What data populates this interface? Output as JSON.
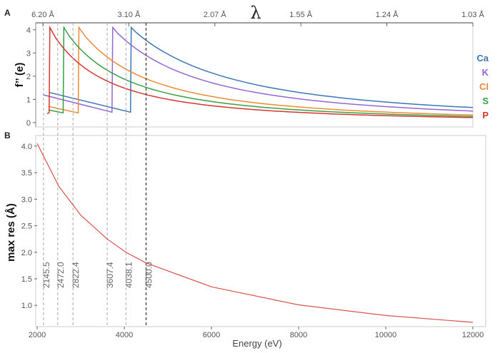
{
  "chart_data": [
    {
      "panel": "A",
      "type": "line",
      "ylabel": "f’’ (e)",
      "top_axis_symbol": "λ",
      "top_ticks": [
        "6.20 Å",
        "3.10 Å",
        "2.07 Å",
        "1.55 Å",
        "1.24 Å",
        "1.03 Å"
      ],
      "top_tick_energies": [
        2000,
        4000,
        6000,
        8000,
        10000,
        12000
      ],
      "xlim": [
        2000,
        12000
      ],
      "ylim": [
        0,
        4.3
      ],
      "yticks": [
        0,
        1,
        2,
        3,
        4
      ],
      "legend_position": "right",
      "series": [
        {
          "name": "Ca",
          "color": "#3b78b5",
          "edge": 4038.1,
          "pre_edge": [
            [
              2150,
              1.3
            ],
            [
              4038.1,
              0.45
            ]
          ],
          "post_edge_peak": 4.1,
          "post_edge_end": 0.65
        },
        {
          "name": "K",
          "color": "#9467d6",
          "edge": 3607.4,
          "pre_edge": [
            [
              2000,
              1.2
            ],
            [
              3607.4,
              0.45
            ]
          ],
          "post_edge_peak": 4.1,
          "post_edge_end": 0.5
        },
        {
          "name": "Cl",
          "color": "#f08a32",
          "edge": 2822.4,
          "pre_edge": [
            [
              2130,
              0.7
            ],
            [
              2822.4,
              0.42
            ]
          ],
          "post_edge_peak": 4.1,
          "post_edge_end": 0.33
        },
        {
          "name": "S",
          "color": "#37a045",
          "edge": 2472.0,
          "pre_edge": [
            [
              2130,
              0.55
            ],
            [
              2472.0,
              0.42
            ]
          ],
          "post_edge_peak": 4.1,
          "post_edge_end": 0.27
        },
        {
          "name": "P",
          "color": "#d6362f",
          "edge": 2145.5,
          "pre_edge": [
            [
              2100,
              0.4
            ],
            [
              2145.5,
              0.42
            ]
          ],
          "post_edge_peak": 4.1,
          "post_edge_end": 0.22
        }
      ]
    },
    {
      "panel": "B",
      "type": "line",
      "ylabel": "max res (Å)",
      "xlabel": "Energy (eV)",
      "xlim": [
        2000,
        12000
      ],
      "ylim": [
        0.6,
        4.2
      ],
      "xticks": [
        "2000",
        "4000",
        "6000",
        "8000",
        "10000",
        "12000"
      ],
      "xtick_values": [
        2000,
        4000,
        6000,
        8000,
        10000,
        12000
      ],
      "yticks": [
        "1.0",
        "1.5",
        "2.0",
        "2.5",
        "3.0",
        "3.5",
        "4.0"
      ],
      "ytick_values": [
        1.0,
        1.5,
        2.0,
        2.5,
        3.0,
        3.5,
        4.0
      ],
      "series": [
        {
          "name": "max res",
          "color": "#d9534f",
          "formula": "8100 / E",
          "points": [
            [
              2000,
              4.05
            ],
            [
              2500,
              3.24
            ],
            [
              3000,
              2.7
            ],
            [
              3607.4,
              2.25
            ],
            [
              4038.1,
              2.0
            ],
            [
              4500,
              1.8
            ],
            [
              6000,
              1.35
            ],
            [
              8000,
              1.01
            ],
            [
              10000,
              0.81
            ],
            [
              12000,
              0.68
            ]
          ]
        }
      ],
      "edge_markers": [
        {
          "label": "2145.5",
          "value": 2145.5
        },
        {
          "label": "2472.0",
          "value": 2472.0
        },
        {
          "label": "2822.4",
          "value": 2822.4
        },
        {
          "label": "3607.4",
          "value": 3607.4
        },
        {
          "label": "4038.1",
          "value": 4038.1
        },
        {
          "label": "4500.0",
          "value": 4500.0
        }
      ]
    }
  ]
}
